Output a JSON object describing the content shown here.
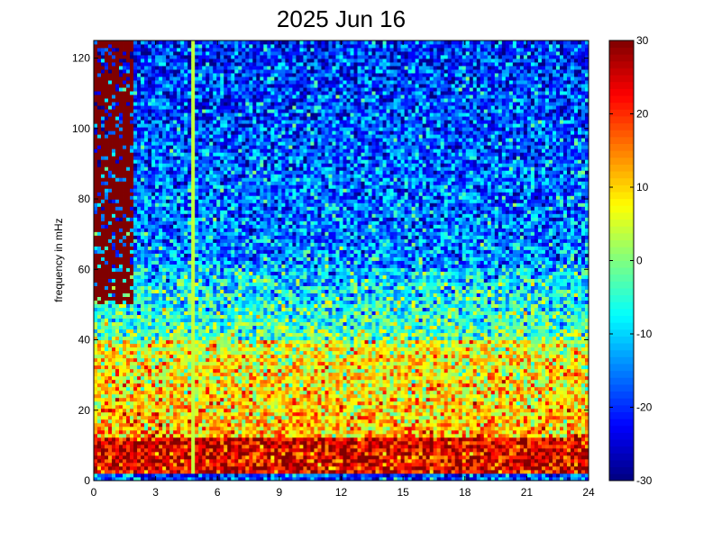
{
  "chart_data": {
    "type": "heatmap",
    "title": "2025 Jun 16",
    "xlabel": "",
    "ylabel": "frequency in mHz",
    "xlim": [
      0,
      24
    ],
    "ylim": [
      0,
      125
    ],
    "x_ticks": [
      "0",
      "3",
      "6",
      "9",
      "12",
      "15",
      "18",
      "21",
      "24"
    ],
    "y_ticks": [
      "0",
      "20",
      "40",
      "60",
      "80",
      "100",
      "120"
    ],
    "colorbar": {
      "range": [
        -30,
        30
      ],
      "colormap": "jet",
      "ticks": [
        "-30",
        "-20",
        "-10",
        "0",
        "10",
        "20",
        "30"
      ]
    },
    "features": {
      "band_0_2_mHz": -18,
      "band_2_12_mHz": 24,
      "band_12_40_mHz": 6,
      "band_40_60_mHz": -10,
      "band_60_125_mHz": -20,
      "high_values_hours_0_2": 30,
      "vertical_line_hour": 4.8,
      "vertical_line_value": 4
    }
  }
}
